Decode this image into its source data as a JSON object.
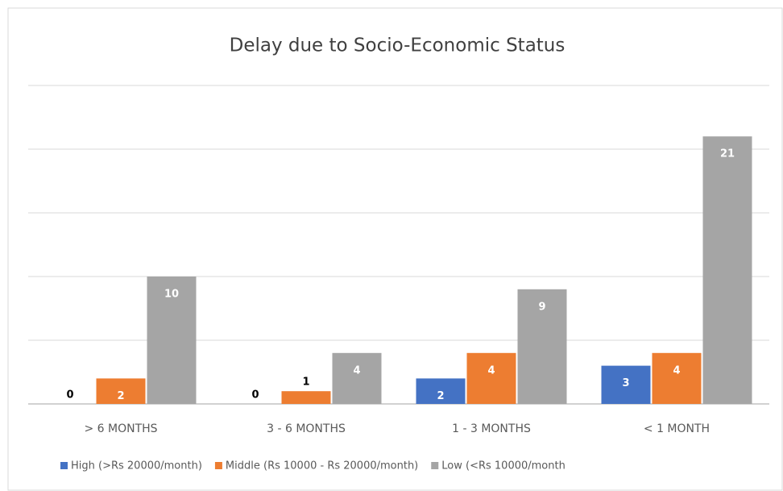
{
  "chart_data": {
    "type": "bar",
    "title": "Delay due to Socio-Economic Status",
    "categories": [
      "> 6 MONTHS",
      "3 - 6 MONTHS",
      "1 - 3 MONTHS",
      "< 1 MONTH"
    ],
    "series": [
      {
        "name": "High (>Rs 20000/month)",
        "color": "#4472c4",
        "values": [
          0,
          0,
          2,
          3
        ]
      },
      {
        "name": "Middle (Rs 10000 - Rs 20000/month)",
        "color": "#ed7d31",
        "values": [
          2,
          1,
          4,
          4
        ]
      },
      {
        "name": "Low (<Rs 10000/month",
        "color": "#a5a5a5",
        "values": [
          10,
          4,
          9,
          21
        ]
      }
    ],
    "ylim": [
      0,
      25
    ],
    "yticks": [
      0,
      5,
      10,
      15,
      20,
      25
    ],
    "grid": true,
    "legend": "bottom"
  }
}
